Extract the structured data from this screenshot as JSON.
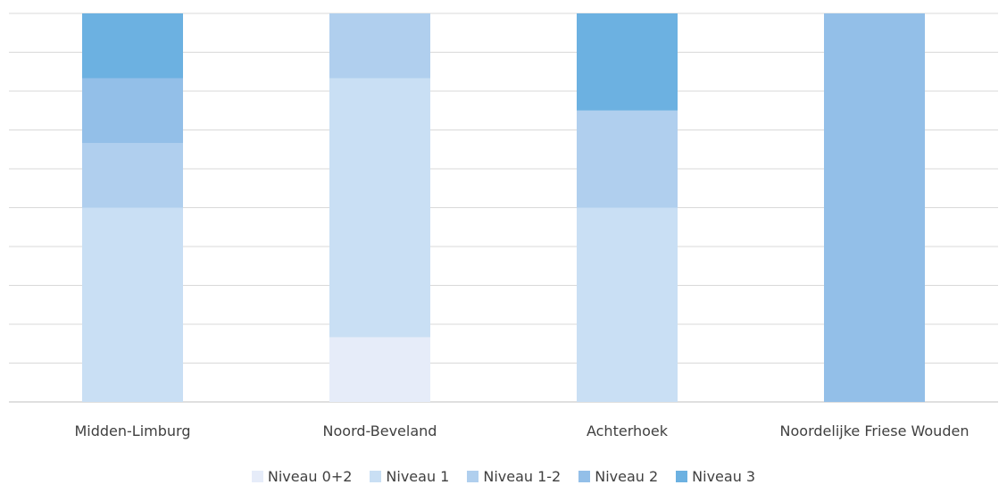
{
  "chart_data": {
    "type": "bar",
    "stacked": "percent",
    "categories": [
      "Midden-Limburg",
      "Noord-Beveland",
      "Achterhoek",
      "Noordelijke Friese Wouden"
    ],
    "series": [
      {
        "name": "Niveau 0+2",
        "color": "#e6ecf9",
        "values": [
          0,
          1,
          0,
          0
        ]
      },
      {
        "name": "Niveau 1",
        "color": "#c9dff4",
        "values": [
          3,
          4,
          2,
          0
        ]
      },
      {
        "name": "Niveau 1-2",
        "color": "#b0cfee",
        "values": [
          1,
          1,
          1,
          0
        ]
      },
      {
        "name": "Niveau 2",
        "color": "#93bfe8",
        "values": [
          1,
          0,
          0,
          1
        ]
      },
      {
        "name": "Niveau 3",
        "color": "#6cb1e1",
        "values": [
          1,
          0,
          1,
          0
        ]
      }
    ],
    "ylim": [
      0,
      1
    ],
    "grid": true,
    "legend_position": "bottom"
  }
}
